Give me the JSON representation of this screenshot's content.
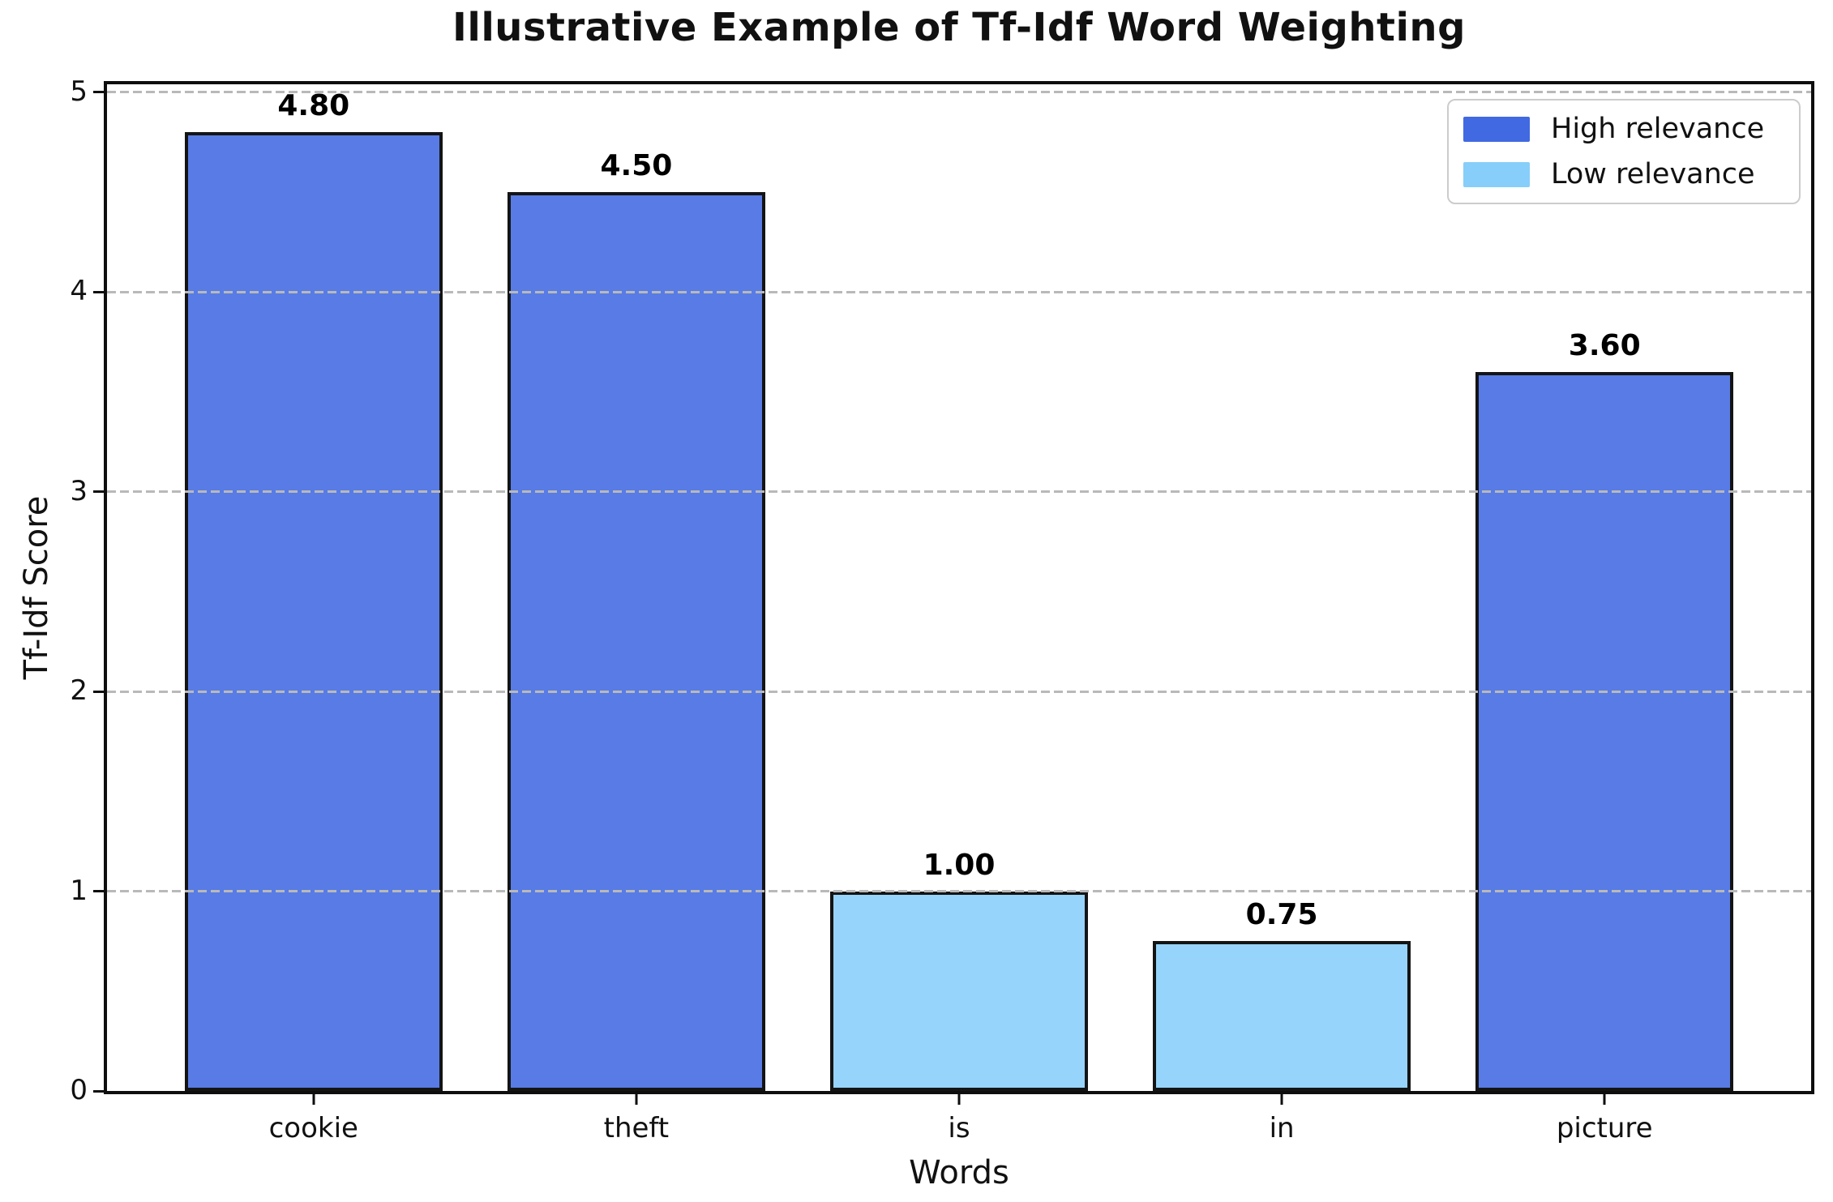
{
  "chart_data": {
    "type": "bar",
    "title": "Illustrative Example of Tf-Idf Word Weighting",
    "xlabel": "Words",
    "ylabel": "Tf-Idf Score",
    "categories": [
      "cookie",
      "theft",
      "is",
      "in",
      "picture"
    ],
    "values": [
      4.8,
      4.5,
      1.0,
      0.75,
      3.6
    ],
    "value_labels": [
      "4.80",
      "4.50",
      "1.00",
      "0.75",
      "3.60"
    ],
    "bar_groups": [
      "high",
      "high",
      "low",
      "low",
      "high"
    ],
    "series_colors": {
      "high": "#4169E1",
      "low": "#87CEFA"
    },
    "bar_edge_color": "#141414",
    "yticks": [
      "0",
      "1",
      "2",
      "3",
      "4",
      "5"
    ],
    "ylim": [
      0,
      5.04
    ],
    "grid": "horizontal dashed gridlines at integer ticks, drawn above bars",
    "grid_color": "#b9b9b9",
    "legend": {
      "position": "upper right",
      "entries": [
        {
          "label": "High relevance",
          "color": "#4169E1"
        },
        {
          "label": "Low relevance",
          "color": "#87CEFA"
        }
      ]
    }
  }
}
